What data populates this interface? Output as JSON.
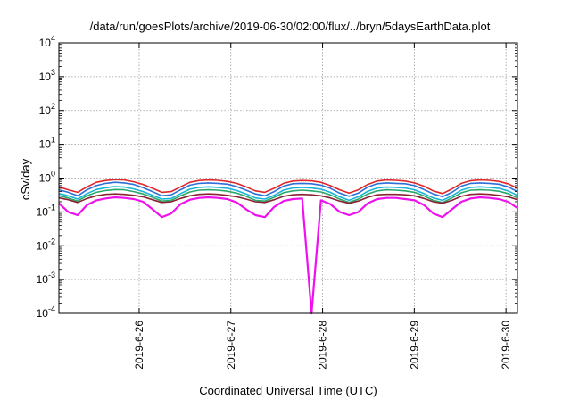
{
  "chart_data": {
    "type": "line",
    "title": "/data/run/goesPlots/archive/2019-06-30/02:00/flux/../bryn/5daysEarthData.plot",
    "xlabel": "Coordinated Universal Time (UTC)",
    "ylabel": "cSv/day",
    "yscale": "log",
    "ylim": [
      0.0001,
      10000
    ],
    "xlim": [
      "2019-06-25T03:00",
      "2019-06-30T03:00"
    ],
    "grid": true,
    "legend": "none",
    "x_ticks": [
      "2019-6-26",
      "2019-6-27",
      "2019-6-28",
      "2019-6-29",
      "2019-6-30"
    ],
    "y_ticks": [
      {
        "value": 0.0001,
        "base": "10",
        "exp": "-4"
      },
      {
        "value": 0.001,
        "base": "10",
        "exp": "-3"
      },
      {
        "value": 0.01,
        "base": "10",
        "exp": "-2"
      },
      {
        "value": 0.1,
        "base": "10",
        "exp": "-1"
      },
      {
        "value": 1,
        "base": "10",
        "exp": "0"
      },
      {
        "value": 10,
        "base": "10",
        "exp": "1"
      },
      {
        "value": 100,
        "base": "10",
        "exp": "2"
      },
      {
        "value": 1000,
        "base": "10",
        "exp": "3"
      },
      {
        "value": 10000,
        "base": "10",
        "exp": "4"
      }
    ],
    "series": [
      {
        "color": "#e0262b",
        "values": [
          0.55,
          0.45,
          0.38,
          0.55,
          0.75,
          0.85,
          0.9,
          0.88,
          0.78,
          0.65,
          0.5,
          0.38,
          0.4,
          0.55,
          0.75,
          0.85,
          0.88,
          0.86,
          0.8,
          0.7,
          0.55,
          0.42,
          0.38,
          0.5,
          0.7,
          0.82,
          0.85,
          0.83,
          0.75,
          0.6,
          0.45,
          0.36,
          0.45,
          0.65,
          0.82,
          0.88,
          0.86,
          0.82,
          0.72,
          0.58,
          0.42,
          0.35,
          0.48,
          0.7,
          0.84,
          0.88,
          0.86,
          0.8,
          0.68,
          0.5
        ]
      },
      {
        "color": "#2e6fd8",
        "values": [
          0.45,
          0.38,
          0.3,
          0.45,
          0.6,
          0.7,
          0.75,
          0.72,
          0.65,
          0.52,
          0.4,
          0.3,
          0.32,
          0.45,
          0.62,
          0.7,
          0.72,
          0.7,
          0.66,
          0.56,
          0.44,
          0.34,
          0.3,
          0.4,
          0.58,
          0.68,
          0.7,
          0.68,
          0.62,
          0.5,
          0.36,
          0.29,
          0.36,
          0.54,
          0.68,
          0.72,
          0.7,
          0.68,
          0.6,
          0.46,
          0.34,
          0.28,
          0.38,
          0.58,
          0.7,
          0.72,
          0.7,
          0.66,
          0.55,
          0.4
        ]
      },
      {
        "color": "#18b4d8",
        "values": [
          0.35,
          0.3,
          0.24,
          0.35,
          0.46,
          0.52,
          0.56,
          0.54,
          0.48,
          0.4,
          0.31,
          0.24,
          0.25,
          0.35,
          0.47,
          0.53,
          0.55,
          0.53,
          0.5,
          0.43,
          0.34,
          0.26,
          0.24,
          0.31,
          0.44,
          0.51,
          0.53,
          0.51,
          0.47,
          0.38,
          0.28,
          0.22,
          0.28,
          0.41,
          0.51,
          0.54,
          0.53,
          0.51,
          0.45,
          0.35,
          0.26,
          0.22,
          0.3,
          0.44,
          0.53,
          0.55,
          0.53,
          0.5,
          0.42,
          0.31
        ]
      },
      {
        "color": "#2aa86a",
        "values": [
          0.3,
          0.26,
          0.21,
          0.3,
          0.38,
          0.43,
          0.46,
          0.45,
          0.4,
          0.34,
          0.27,
          0.21,
          0.22,
          0.3,
          0.39,
          0.44,
          0.45,
          0.44,
          0.41,
          0.36,
          0.29,
          0.22,
          0.21,
          0.27,
          0.37,
          0.42,
          0.44,
          0.42,
          0.39,
          0.32,
          0.24,
          0.19,
          0.24,
          0.34,
          0.42,
          0.45,
          0.44,
          0.42,
          0.38,
          0.3,
          0.22,
          0.19,
          0.26,
          0.37,
          0.44,
          0.45,
          0.44,
          0.41,
          0.35,
          0.26
        ]
      },
      {
        "color": "#8a2030",
        "values": [
          0.26,
          0.23,
          0.19,
          0.25,
          0.3,
          0.33,
          0.34,
          0.33,
          0.31,
          0.28,
          0.23,
          0.19,
          0.2,
          0.25,
          0.3,
          0.33,
          0.34,
          0.33,
          0.31,
          0.28,
          0.24,
          0.2,
          0.19,
          0.23,
          0.29,
          0.32,
          0.33,
          0.32,
          0.3,
          0.26,
          0.21,
          0.18,
          0.21,
          0.27,
          0.32,
          0.33,
          0.33,
          0.32,
          0.3,
          0.25,
          0.2,
          0.18,
          0.22,
          0.29,
          0.33,
          0.34,
          0.33,
          0.31,
          0.28,
          0.23
        ]
      },
      {
        "color": "#ee11ee",
        "values": [
          0.18,
          0.1,
          0.08,
          0.16,
          0.22,
          0.25,
          0.27,
          0.26,
          0.24,
          0.2,
          0.12,
          0.07,
          0.09,
          0.17,
          0.23,
          0.26,
          0.27,
          0.26,
          0.24,
          0.19,
          0.12,
          0.08,
          0.07,
          0.14,
          0.21,
          0.24,
          0.25,
          0.0001,
          0.22,
          0.17,
          0.1,
          0.08,
          0.1,
          0.18,
          0.24,
          0.26,
          0.26,
          0.24,
          0.22,
          0.16,
          0.09,
          0.07,
          0.12,
          0.2,
          0.25,
          0.27,
          0.26,
          0.24,
          0.2,
          0.13
        ]
      }
    ]
  }
}
